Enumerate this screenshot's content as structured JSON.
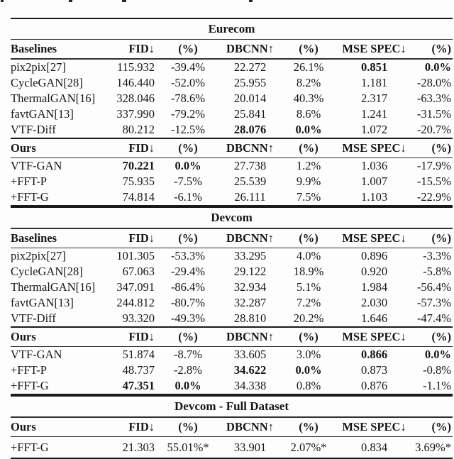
{
  "colors": {
    "background": "#fdfdfd",
    "text": "#161616",
    "rule": "#1a1a1a"
  },
  "table": {
    "columns": [
      "FID↓",
      "(%)",
      "DBCNN↑",
      "(%)",
      "MSE SPEC↓",
      "(%)"
    ],
    "sections": [
      {
        "title": "Eurecom",
        "groups": [
          {
            "label": "Baselines",
            "rows": [
              {
                "name": "pix2pix[27]",
                "values": [
                  "115.932",
                  "-39.4%",
                  "22.272",
                  "26.1%",
                  "0.851",
                  "0.0%"
                ],
                "bold": [
                  4,
                  5
                ]
              },
              {
                "name": "CycleGAN[28]",
                "values": [
                  "146.440",
                  "-52.0%",
                  "25.955",
                  "8.2%",
                  "1.181",
                  "-28.0%"
                ],
                "bold": []
              },
              {
                "name": "ThermalGAN[16]",
                "values": [
                  "328.046",
                  "-78.6%",
                  "20.014",
                  "40.3%",
                  "2.317",
                  "-63.3%"
                ],
                "bold": []
              },
              {
                "name": "favtGAN[13]",
                "values": [
                  "337.990",
                  "-79.2%",
                  "25.841",
                  "8.6%",
                  "1.241",
                  "-31.5%"
                ],
                "bold": []
              },
              {
                "name": "VTF-Diff",
                "values": [
                  "80.212",
                  "-12.5%",
                  "28.076",
                  "0.0%",
                  "1.072",
                  "-20.7%"
                ],
                "bold": [
                  2,
                  3
                ]
              }
            ]
          },
          {
            "label": "Ours",
            "rows": [
              {
                "name": "VTF-GAN",
                "values": [
                  "70.221",
                  "0.0%",
                  "27.738",
                  "1.2%",
                  "1.036",
                  "-17.9%"
                ],
                "bold": [
                  0,
                  1
                ]
              },
              {
                "name": "+FFT-P",
                "values": [
                  "75.935",
                  "-7.5%",
                  "25.539",
                  "9.9%",
                  "1.007",
                  "-15.5%"
                ],
                "bold": []
              },
              {
                "name": "+FFT-G",
                "values": [
                  "74.814",
                  "-6.1%",
                  "26.111",
                  "7.5%",
                  "1.103",
                  "-22.9%"
                ],
                "bold": []
              }
            ]
          }
        ]
      },
      {
        "title": "Devcom",
        "groups": [
          {
            "label": "Baselines",
            "rows": [
              {
                "name": "pix2pix[27]",
                "values": [
                  "101.305",
                  "-53.3%",
                  "33.295",
                  "4.0%",
                  "0.896",
                  "-3.3%"
                ],
                "bold": []
              },
              {
                "name": "CycleGAN[28]",
                "values": [
                  "67.063",
                  "-29.4%",
                  "29.122",
                  "18.9%",
                  "0.920",
                  "-5.8%"
                ],
                "bold": []
              },
              {
                "name": "ThermalGAN[16]",
                "values": [
                  "347.091",
                  "-86.4%",
                  "32.934",
                  "5.1%",
                  "1.984",
                  "-56.4%"
                ],
                "bold": []
              },
              {
                "name": "favtGAN[13]",
                "values": [
                  "244.812",
                  "-80.7%",
                  "32.287",
                  "7.2%",
                  "2.030",
                  "-57.3%"
                ],
                "bold": []
              },
              {
                "name": "VTF-Diff",
                "values": [
                  "93.320",
                  "-49.3%",
                  "28.810",
                  "20.2%",
                  "1.646",
                  "-47.4%"
                ],
                "bold": []
              }
            ]
          },
          {
            "label": "Ours",
            "rows": [
              {
                "name": "VTF-GAN",
                "values": [
                  "51.874",
                  "-8.7%",
                  "33.605",
                  "3.0%",
                  "0.866",
                  "0.0%"
                ],
                "bold": [
                  4,
                  5
                ]
              },
              {
                "name": "+FFT-P",
                "values": [
                  "48.737",
                  "-2.8%",
                  "34.622",
                  "0.0%",
                  "0.873",
                  "-0.8%"
                ],
                "bold": [
                  2,
                  3
                ]
              },
              {
                "name": "+FFT-G",
                "values": [
                  "47.351",
                  "0.0%",
                  "34.338",
                  "0.8%",
                  "0.876",
                  "-1.1%"
                ],
                "bold": [
                  0,
                  1
                ]
              }
            ]
          }
        ]
      },
      {
        "title": "Devcom - Full Dataset",
        "groups": [
          {
            "label": "Ours",
            "rows": [
              {
                "name": "+FFT-G",
                "values": [
                  "21.303",
                  "55.01%*",
                  "33.901",
                  "2.07%*",
                  "0.834",
                  "3.69%*"
                ],
                "bold": []
              }
            ]
          }
        ]
      }
    ]
  }
}
